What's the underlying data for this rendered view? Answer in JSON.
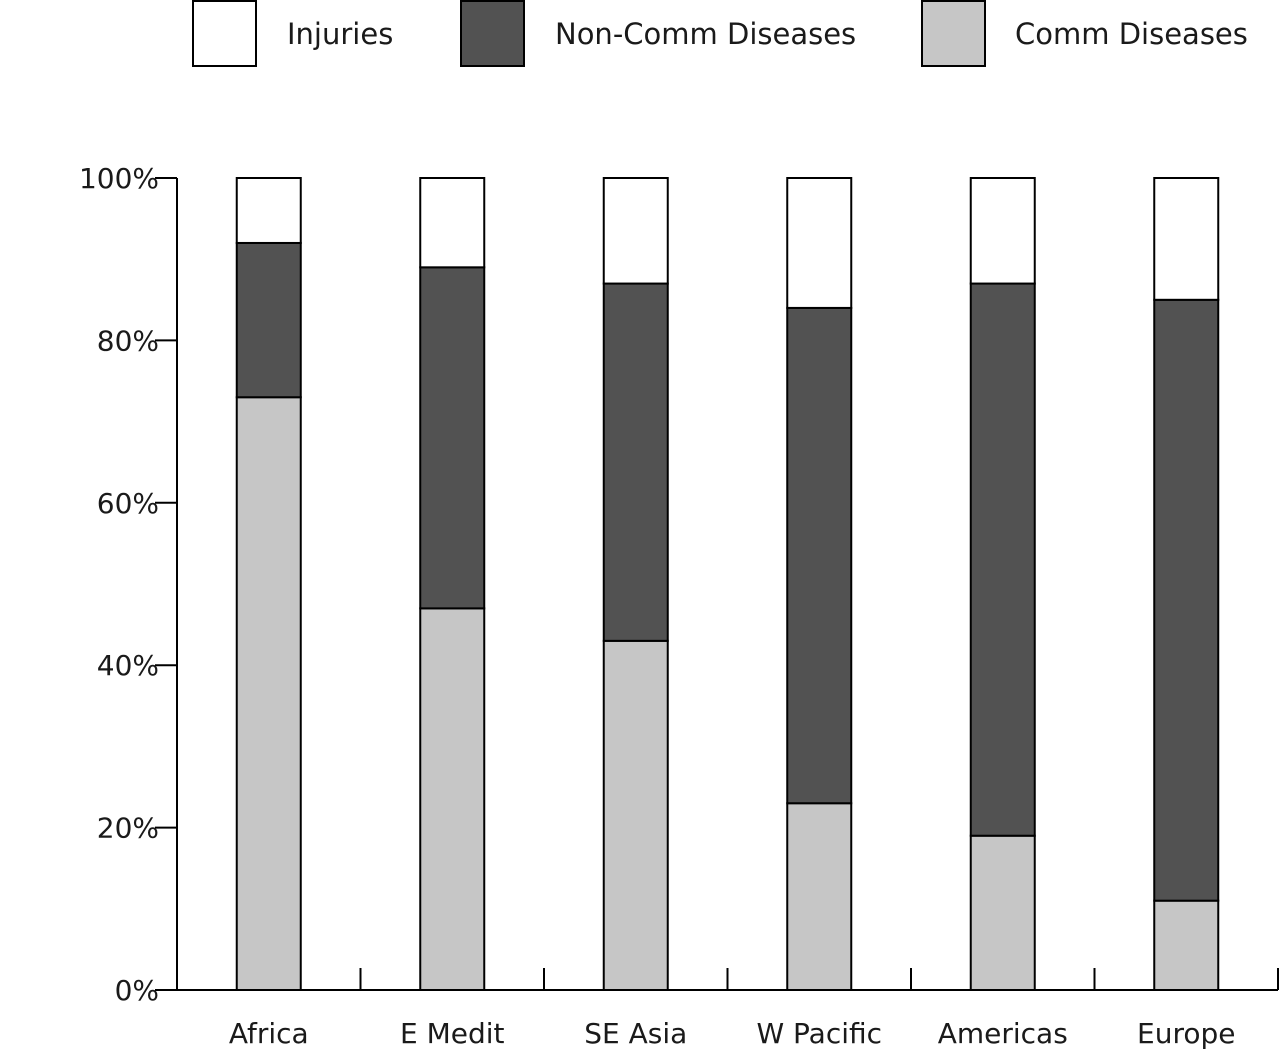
{
  "chart_data": {
    "type": "bar",
    "stacked": true,
    "categories": [
      "Africa",
      "E Medit",
      "SE Asia",
      "W Pacific",
      "Americas",
      "Europe"
    ],
    "series": [
      {
        "name": "Comm Diseases",
        "color": "#c6c6c6",
        "values": [
          73,
          47,
          43,
          23,
          19,
          11
        ]
      },
      {
        "name": "Non-Comm Diseases",
        "color": "#525252",
        "values": [
          19,
          42,
          44,
          61,
          68,
          74
        ]
      },
      {
        "name": "Injuries",
        "color": "#ffffff",
        "values": [
          8,
          11,
          13,
          16,
          13,
          15
        ]
      }
    ],
    "legend_order": [
      "Injuries",
      "Non-Comm Diseases",
      "Comm Diseases"
    ],
    "yticks": [
      "0%",
      "20%",
      "40%",
      "60%",
      "80%",
      "100%"
    ],
    "ylim": [
      0,
      100
    ],
    "legend_position": "top",
    "grid": false
  }
}
